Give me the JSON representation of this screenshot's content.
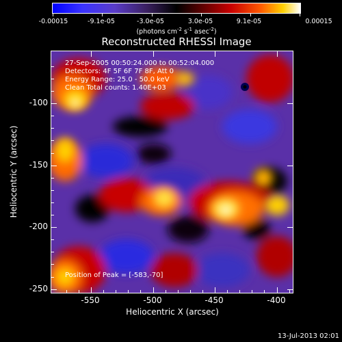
{
  "colorbar": {
    "tick_labels": [
      "-0.00015",
      "-9.1e-05",
      "-3.0e-05",
      "3.0e-05",
      "9.1e-05",
      "0.00015"
    ],
    "units": "(photons cm",
    "units_exp1": "-2",
    "units_mid": " s",
    "units_exp2": "-1",
    "units_mid2": " asec",
    "units_exp3": "-2",
    "units_end": ")",
    "colors": [
      "#0000ff",
      "#5a3cc8",
      "#000000",
      "#c80000",
      "#ffd000",
      "#ffffff"
    ]
  },
  "title": "Reconstructed RHESSI Image",
  "info": {
    "line1": "27-Sep-2005 00:50:24.000 to 00:52:04.000",
    "line2": "Detectors: 4F 5F 6F 7F 8F, Att 0",
    "line3": "Energy Range: 25.0 - 50.0 keV",
    "line4": "Clean    Total counts: 1.40E+03",
    "peak": "Position of Peak = [-583,-70]"
  },
  "x_axis": {
    "title": "Heliocentric X (arcsec)",
    "range": [
      -583,
      -387
    ],
    "tick_labels": [
      "-550",
      "-500",
      "-450",
      "-400"
    ],
    "tick_values": [
      -550,
      -500,
      -450,
      -400
    ]
  },
  "y_axis": {
    "title": "Heliocentric Y (arcsec)",
    "range": [
      -254,
      -58
    ],
    "tick_labels": [
      "-100",
      "-150",
      "-200",
      "-250"
    ],
    "tick_values": [
      -100,
      -150,
      -200,
      -250
    ]
  },
  "timestamp": "13-Jul-2013 02:01"
}
